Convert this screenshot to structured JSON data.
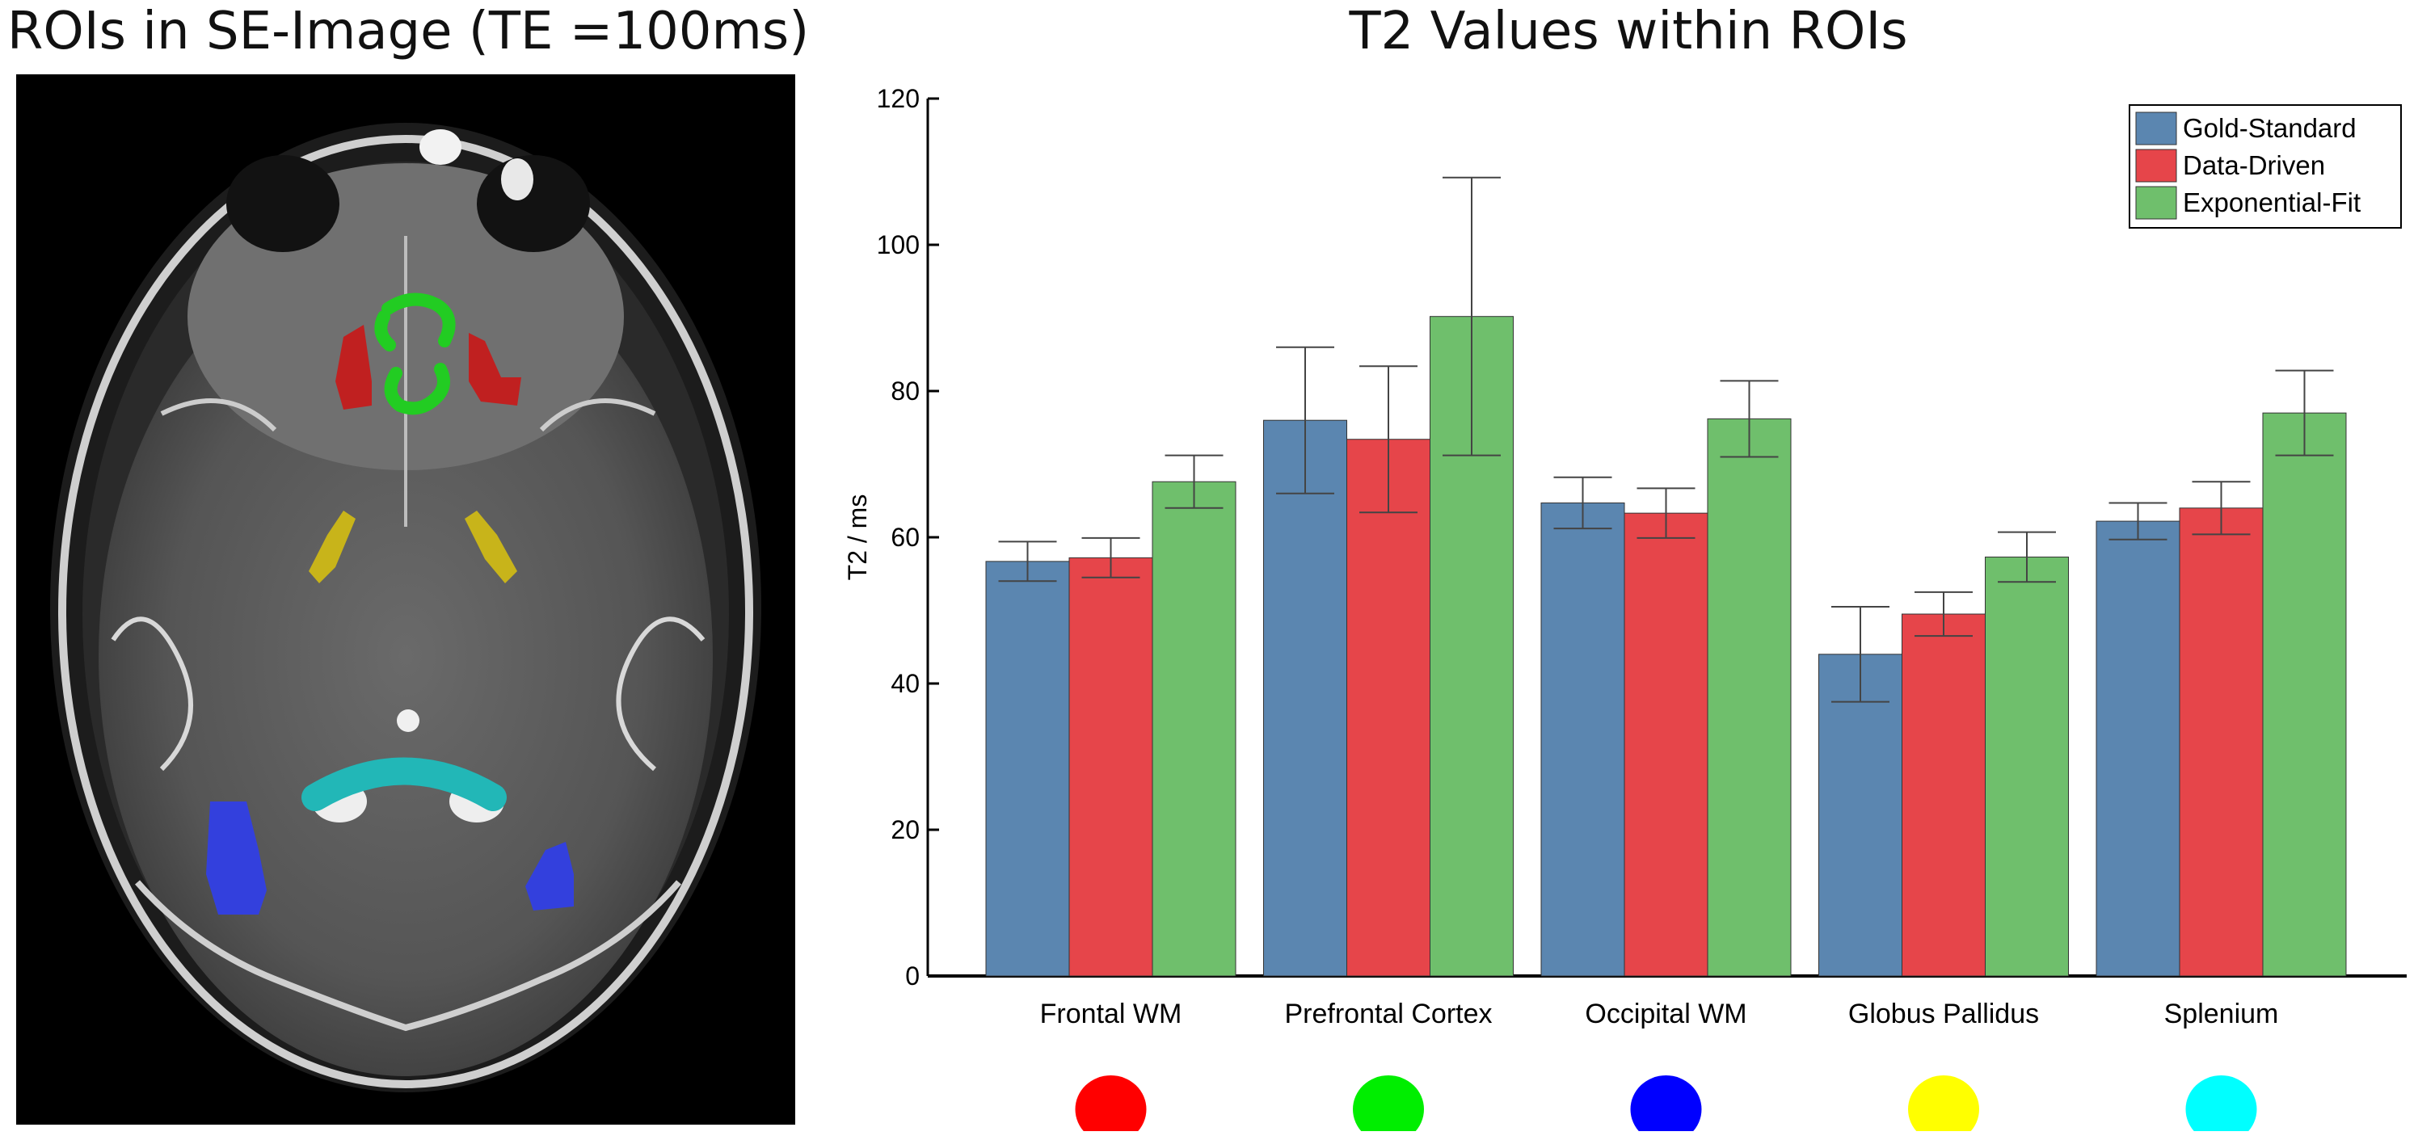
{
  "left_panel": {
    "title": "ROIs in SE-Image (TE =100ms)",
    "image_label": "axial T2-weighted spin-echo brain MRI with colored ROIs"
  },
  "chart_data": {
    "type": "bar",
    "title": "T2 Values within ROIs",
    "xlabel": "",
    "ylabel": "T2 / ms",
    "ylim": [
      0,
      120
    ],
    "yticks": [
      0,
      20,
      40,
      60,
      80,
      100,
      120
    ],
    "categories": [
      "Frontal WM",
      "Prefrontal Cortex",
      "Occipital WM",
      "Globus Pallidus",
      "Splenium"
    ],
    "series": [
      {
        "name": "Gold-Standard",
        "color": "#5b86b0",
        "values": [
          56.7,
          76.0,
          64.7,
          44.0,
          62.2
        ],
        "errors": [
          2.7,
          10.0,
          3.5,
          6.5,
          2.5
        ]
      },
      {
        "name": "Data-Driven",
        "color": "#e6454a",
        "values": [
          57.2,
          73.4,
          63.3,
          49.5,
          64.0
        ],
        "errors": [
          2.7,
          10.0,
          3.4,
          3.0,
          3.6
        ]
      },
      {
        "name": "Exponential-Fit",
        "color": "#6fbf6c",
        "values": [
          67.6,
          90.2,
          76.2,
          57.3,
          77.0
        ],
        "errors": [
          3.6,
          19.0,
          5.2,
          3.4,
          5.8
        ]
      }
    ],
    "roi_marker_colors": [
      "#ff0000",
      "#00ee00",
      "#0000ff",
      "#ffff00",
      "#00ffff"
    ],
    "legend_position": "top-right",
    "grid": false
  }
}
